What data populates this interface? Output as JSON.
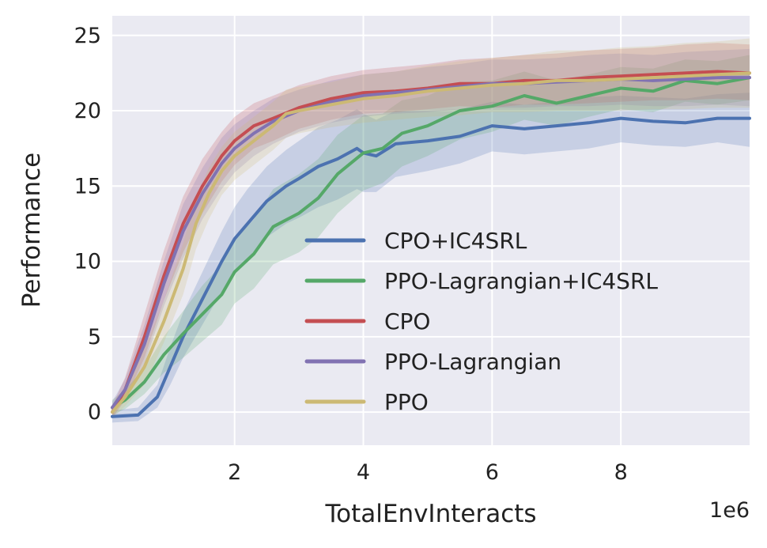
{
  "chart_data": {
    "type": "line",
    "title": "",
    "xlabel": "TotalEnvInteracts",
    "ylabel": "Performance",
    "x_multiplier_label": "1e6",
    "xlim": [
      0.1,
      10.0
    ],
    "ylim": [
      -2.2,
      26.3
    ],
    "xticks": [
      2,
      4,
      6,
      8
    ],
    "yticks": [
      0,
      5,
      10,
      15,
      20,
      25
    ],
    "grid": true,
    "legend_position": "lower-right",
    "series": [
      {
        "name": "CPO+IC4SRL",
        "color": "#4c72b0",
        "x": [
          0.1,
          0.5,
          0.8,
          1.0,
          1.2,
          1.5,
          1.8,
          2.0,
          2.2,
          2.5,
          2.8,
          3.0,
          3.3,
          3.6,
          3.9,
          4.0,
          4.2,
          4.5,
          5.0,
          5.5,
          6.0,
          6.5,
          7.0,
          7.5,
          8.0,
          8.5,
          9.0,
          9.5,
          10.0
        ],
        "y": [
          -0.3,
          -0.2,
          1.0,
          3.0,
          5.0,
          7.5,
          10.0,
          11.5,
          12.5,
          14.0,
          15.0,
          15.5,
          16.3,
          16.8,
          17.5,
          17.2,
          17.0,
          17.8,
          18.0,
          18.3,
          19.0,
          18.8,
          19.0,
          19.2,
          19.5,
          19.3,
          19.2,
          19.5,
          19.5
        ],
        "lower": [
          -0.7,
          -0.6,
          0.3,
          1.8,
          3.6,
          5.8,
          8.0,
          9.4,
          10.2,
          11.6,
          12.5,
          12.9,
          13.6,
          14.1,
          14.8,
          14.6,
          14.6,
          15.6,
          16.0,
          16.5,
          17.3,
          17.1,
          17.3,
          17.5,
          17.9,
          17.7,
          17.6,
          17.9,
          17.6
        ],
        "upper": [
          0.1,
          0.3,
          1.8,
          4.3,
          6.6,
          9.3,
          12.0,
          13.6,
          14.8,
          16.3,
          17.4,
          18.0,
          18.9,
          19.4,
          20.1,
          19.8,
          19.4,
          20.0,
          20.0,
          20.1,
          20.6,
          20.4,
          20.6,
          20.9,
          21.0,
          20.9,
          20.8,
          21.1,
          21.2
        ]
      },
      {
        "name": "PPO-Lagrangian+IC4SRL",
        "color": "#55a868",
        "x": [
          0.1,
          0.3,
          0.6,
          0.9,
          1.2,
          1.5,
          1.8,
          2.0,
          2.3,
          2.6,
          3.0,
          3.3,
          3.6,
          4.0,
          4.3,
          4.6,
          5.0,
          5.5,
          6.0,
          6.5,
          7.0,
          7.5,
          8.0,
          8.5,
          9.0,
          9.5,
          10.0
        ],
        "y": [
          0.3,
          0.8,
          2.0,
          3.8,
          5.2,
          6.5,
          7.8,
          9.3,
          10.5,
          12.3,
          13.2,
          14.2,
          15.8,
          17.2,
          17.5,
          18.5,
          19.0,
          20.0,
          20.3,
          21.0,
          20.5,
          21.0,
          21.5,
          21.3,
          22.0,
          21.8,
          22.2
        ],
        "lower": [
          -0.2,
          0.2,
          1.2,
          2.6,
          3.6,
          4.7,
          5.8,
          7.2,
          8.2,
          9.8,
          10.6,
          11.6,
          13.2,
          14.7,
          15.2,
          16.3,
          17.0,
          18.1,
          18.6,
          19.4,
          19.0,
          19.6,
          20.1,
          19.9,
          20.6,
          20.4,
          20.7
        ],
        "upper": [
          0.8,
          1.5,
          2.9,
          5.0,
          6.7,
          8.4,
          9.8,
          11.4,
          12.8,
          14.8,
          15.8,
          16.8,
          18.4,
          19.7,
          19.8,
          20.7,
          21.0,
          21.9,
          22.0,
          22.6,
          22.0,
          22.4,
          22.9,
          22.8,
          23.4,
          23.3,
          23.7
        ]
      },
      {
        "name": "CPO",
        "color": "#c44e52",
        "x": [
          0.1,
          0.3,
          0.6,
          0.9,
          1.2,
          1.5,
          1.8,
          2.0,
          2.3,
          2.6,
          3.0,
          3.5,
          4.0,
          4.5,
          5.0,
          5.5,
          6.0,
          6.5,
          7.0,
          7.5,
          8.0,
          8.5,
          9.0,
          9.5,
          10.0
        ],
        "y": [
          0.0,
          1.5,
          5.0,
          9.0,
          12.5,
          15.0,
          17.0,
          18.0,
          19.0,
          19.5,
          20.2,
          20.8,
          21.2,
          21.3,
          21.5,
          21.8,
          21.8,
          22.0,
          22.0,
          22.2,
          22.3,
          22.4,
          22.5,
          22.6,
          22.5
        ],
        "lower": [
          -0.4,
          0.8,
          3.6,
          7.4,
          10.6,
          13.2,
          15.3,
          16.4,
          17.5,
          18.0,
          18.8,
          19.4,
          19.8,
          19.9,
          20.1,
          20.3,
          20.2,
          20.4,
          20.4,
          20.5,
          20.6,
          20.7,
          20.7,
          20.8,
          20.7
        ],
        "upper": [
          0.4,
          2.3,
          6.5,
          10.7,
          14.3,
          16.8,
          18.6,
          19.6,
          20.5,
          21.0,
          21.7,
          22.3,
          22.7,
          22.9,
          23.1,
          23.4,
          23.5,
          23.7,
          23.8,
          24.0,
          24.1,
          24.2,
          24.4,
          24.5,
          24.4
        ]
      },
      {
        "name": "PPO-Lagrangian",
        "color": "#8172b2",
        "x": [
          0.1,
          0.3,
          0.6,
          0.9,
          1.2,
          1.5,
          1.8,
          2.0,
          2.3,
          2.6,
          3.0,
          3.5,
          4.0,
          4.5,
          5.0,
          5.5,
          6.0,
          6.5,
          7.0,
          7.5,
          8.0,
          8.5,
          9.0,
          9.5,
          10.0
        ],
        "y": [
          0.3,
          1.5,
          4.5,
          8.5,
          12.0,
          14.5,
          16.5,
          17.5,
          18.5,
          19.3,
          20.0,
          20.6,
          21.0,
          21.2,
          21.4,
          21.6,
          21.8,
          21.8,
          21.9,
          22.0,
          22.1,
          22.0,
          22.1,
          22.2,
          22.2
        ],
        "lower": [
          -0.1,
          0.8,
          3.2,
          7.0,
          10.2,
          12.8,
          14.8,
          15.9,
          17.0,
          17.8,
          18.6,
          19.2,
          19.6,
          19.8,
          19.9,
          20.1,
          20.2,
          20.2,
          20.3,
          20.3,
          20.4,
          20.3,
          20.3,
          20.4,
          20.3
        ],
        "upper": [
          0.7,
          2.2,
          5.8,
          10.0,
          13.8,
          16.2,
          18.2,
          19.1,
          20.0,
          20.8,
          21.4,
          22.0,
          22.4,
          22.6,
          22.9,
          23.1,
          23.4,
          23.4,
          23.5,
          23.7,
          23.8,
          23.7,
          23.9,
          24.0,
          24.1
        ]
      },
      {
        "name": "PPO",
        "color": "#ccb974",
        "x": [
          0.1,
          0.3,
          0.6,
          0.9,
          1.2,
          1.4,
          1.6,
          1.8,
          2.0,
          2.3,
          2.6,
          2.8,
          3.0,
          3.5,
          4.0,
          4.5,
          5.0,
          5.5,
          6.0,
          6.5,
          7.0,
          7.5,
          8.0,
          8.5,
          9.0,
          9.5,
          10.0
        ],
        "y": [
          0.0,
          1.0,
          3.0,
          6.0,
          9.5,
          12.5,
          14.5,
          16.0,
          17.0,
          18.0,
          19.0,
          19.8,
          20.0,
          20.4,
          20.8,
          21.0,
          21.3,
          21.5,
          21.7,
          21.8,
          22.0,
          22.0,
          22.1,
          22.2,
          22.3,
          22.4,
          22.5
        ],
        "lower": [
          -0.4,
          0.4,
          1.8,
          4.6,
          7.8,
          10.8,
          12.8,
          14.4,
          15.4,
          16.4,
          17.4,
          18.2,
          18.5,
          18.9,
          19.2,
          19.4,
          19.6,
          19.7,
          19.9,
          19.9,
          20.0,
          20.0,
          20.0,
          20.1,
          20.1,
          20.2,
          20.2
        ],
        "upper": [
          0.4,
          1.6,
          4.2,
          7.4,
          11.2,
          14.2,
          16.2,
          17.6,
          18.6,
          19.6,
          20.6,
          21.4,
          21.6,
          21.9,
          22.4,
          22.6,
          23.0,
          23.3,
          23.5,
          23.7,
          24.0,
          24.0,
          24.2,
          24.3,
          24.5,
          24.6,
          24.8
        ]
      }
    ]
  }
}
